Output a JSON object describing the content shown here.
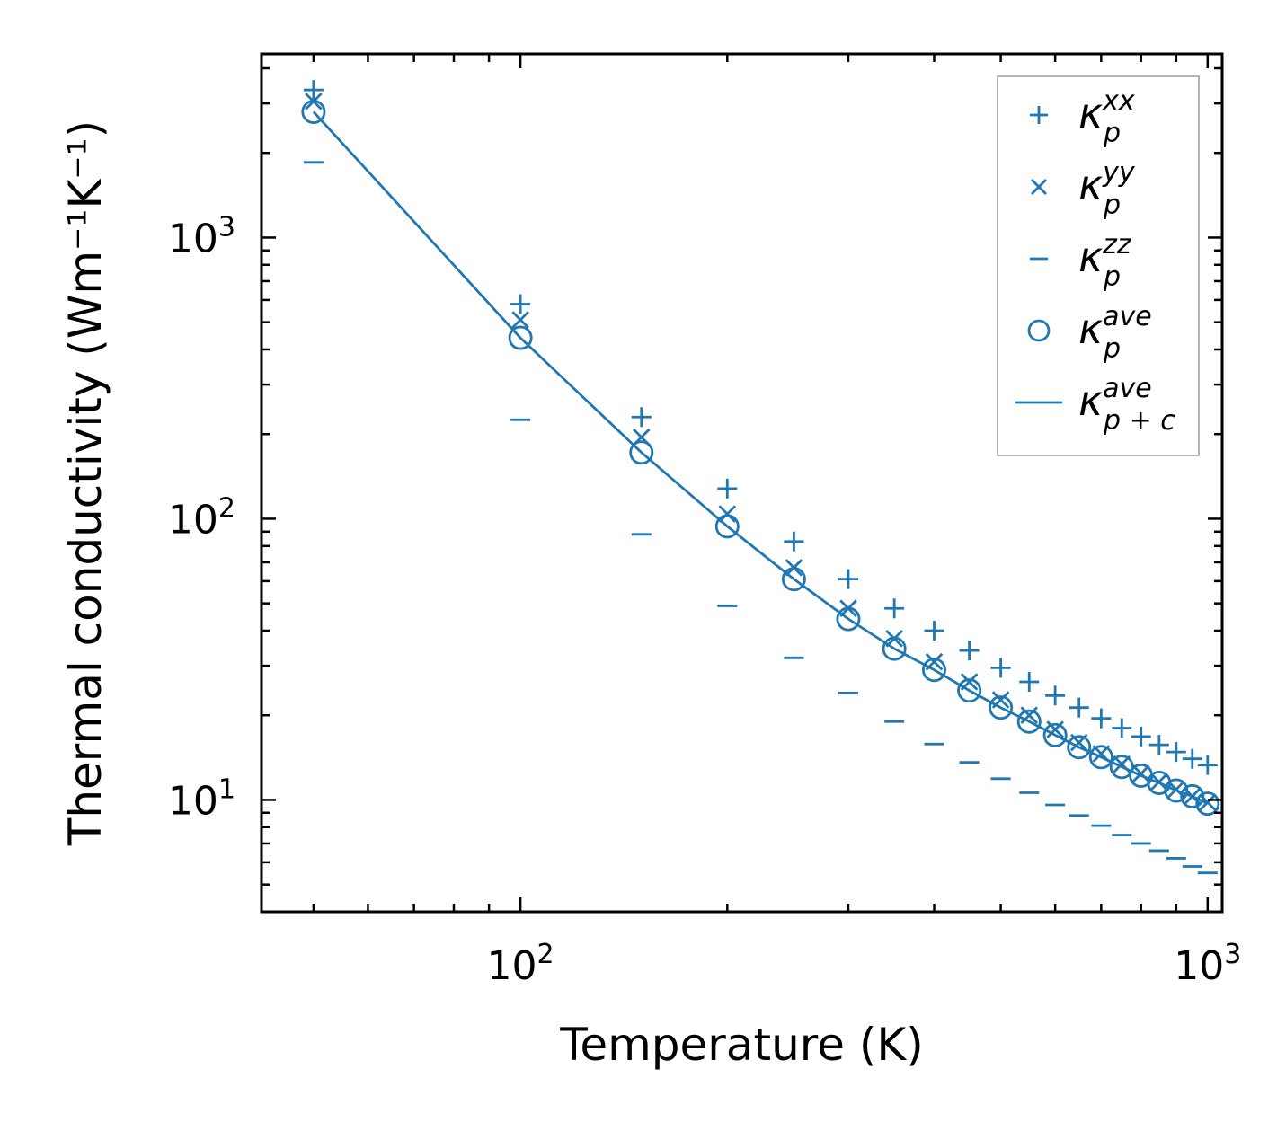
{
  "chart_data": {
    "type": "scatter",
    "title": "",
    "xlabel": "Temperature (K)",
    "ylabel": "Thermal conductivity (Wm⁻¹K⁻¹)",
    "xscale": "log",
    "yscale": "log",
    "xlim": [
      42,
      1050
    ],
    "ylim": [
      4,
      4500
    ],
    "xticks": [
      {
        "value": 100,
        "base": "10",
        "exp": "2"
      },
      {
        "value": 1000,
        "base": "10",
        "exp": "3"
      }
    ],
    "yticks": [
      {
        "value": 10,
        "base": "10",
        "exp": "1"
      },
      {
        "value": 100,
        "base": "10",
        "exp": "2"
      },
      {
        "value": 1000,
        "base": "10",
        "exp": "3"
      }
    ],
    "grid": false,
    "legend_position": "top-right",
    "color": "#1f77b4",
    "x": [
      50,
      100,
      150,
      200,
      250,
      300,
      350,
      400,
      450,
      500,
      550,
      600,
      650,
      700,
      750,
      800,
      850,
      900,
      950,
      1000
    ],
    "series": [
      {
        "name": "xx",
        "marker": "plus",
        "label_base": "κ",
        "label_sup": "xx",
        "label_sub": "p",
        "values": [
          3350,
          580,
          230,
          128,
          83,
          61,
          48,
          40,
          34,
          29.5,
          26.3,
          23.5,
          21.3,
          19.5,
          18.0,
          16.8,
          15.7,
          14.8,
          14.0,
          13.3
        ]
      },
      {
        "name": "yy",
        "marker": "x",
        "label_base": "κ",
        "label_sup": "yy",
        "label_sub": "p",
        "values": [
          3050,
          510,
          195,
          104,
          67,
          48,
          37.5,
          31,
          26.3,
          22.7,
          20.0,
          17.8,
          16.0,
          14.6,
          13.4,
          12.4,
          11.6,
          10.9,
          10.3,
          9.8
        ]
      },
      {
        "name": "zz",
        "marker": "hline",
        "label_base": "κ",
        "label_sup": "zz",
        "label_sub": "p",
        "values": [
          1850,
          225,
          88,
          49,
          32,
          24,
          19,
          15.8,
          13.6,
          11.9,
          10.6,
          9.6,
          8.8,
          8.1,
          7.5,
          7.0,
          6.6,
          6.2,
          5.8,
          5.5
        ]
      },
      {
        "name": "ave",
        "marker": "circle",
        "label_base": "κ",
        "label_sup": "ave",
        "label_sub": "p",
        "values": [
          2800,
          440,
          172,
          94,
          61,
          44,
          34.5,
          29,
          24.5,
          21.3,
          19.0,
          17.0,
          15.4,
          14.2,
          13.1,
          12.2,
          11.5,
          10.8,
          10.3,
          9.7
        ]
      },
      {
        "name": "ave_pc",
        "marker": "line",
        "label_base": "κ",
        "label_sup": "ave",
        "label_sub": "p + c",
        "values": [
          2800,
          440,
          172,
          94,
          61,
          44,
          34.5,
          29,
          24.5,
          21.3,
          19.0,
          17.0,
          15.4,
          14.2,
          13.1,
          12.2,
          11.5,
          10.8,
          10.3,
          9.7
        ]
      }
    ]
  }
}
